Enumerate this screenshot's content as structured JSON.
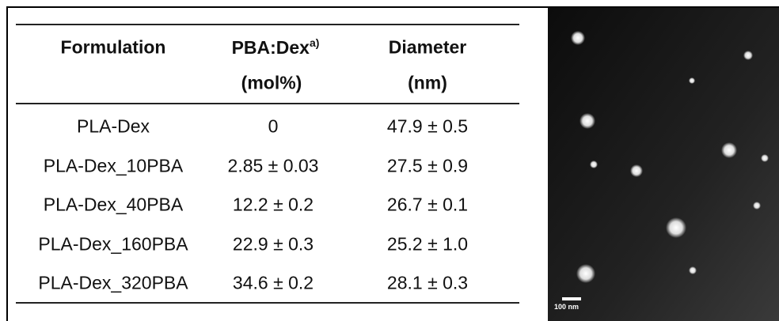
{
  "table": {
    "columns": [
      {
        "title": "Formulation"
      },
      {
        "title": "PBA:Dex",
        "note": "a)",
        "unit": "(mol%)"
      },
      {
        "title": "Diameter",
        "unit": "(nm)"
      }
    ],
    "rows": [
      [
        "PLA-Dex",
        "0",
        "47.9 ± 0.5"
      ],
      [
        "PLA-Dex_10PBA",
        "2.85 ± 0.03",
        "27.5 ± 0.9"
      ],
      [
        "PLA-Dex_40PBA",
        "12.2 ± 0.2",
        "26.7 ± 0.1"
      ],
      [
        "PLA-Dex_160PBA",
        "22.9 ± 0.3",
        "25.2 ± 1.0"
      ],
      [
        "PLA-Dex_320PBA",
        "34.6 ± 0.2",
        "28.1 ± 0.3"
      ]
    ]
  },
  "image": {
    "scale_bar": "100 nm"
  }
}
